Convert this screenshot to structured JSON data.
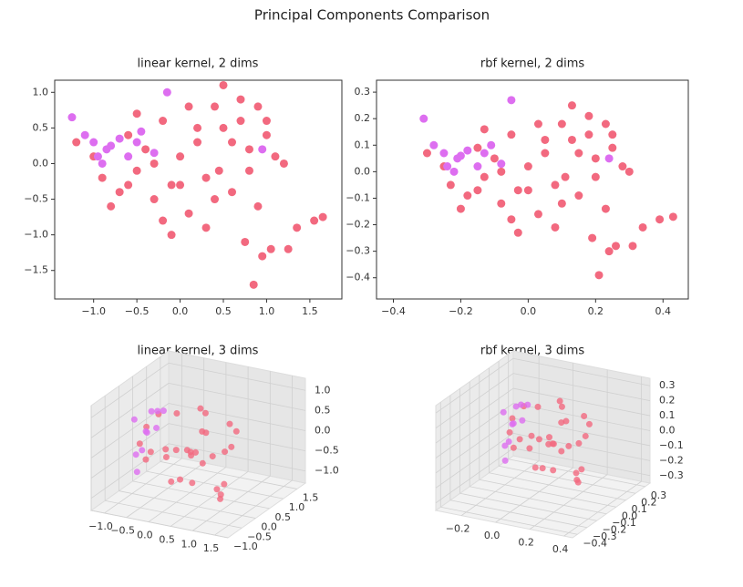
{
  "title": "Principal Components Comparison",
  "chart_data": [
    {
      "type": "scatter",
      "title": "linear kernel, 2 dims",
      "xlim": [
        -1.45,
        1.87
      ],
      "ylim": [
        -1.9,
        1.17
      ],
      "xticks": [
        {
          "value": -1,
          "label": "−1.0"
        },
        {
          "value": -0.5,
          "label": "−0.5"
        },
        {
          "value": 0,
          "label": "0.0"
        },
        0.5,
        {
          "value": 1,
          "label": "1.0"
        },
        1.5
      ],
      "yticks": [
        {
          "value": 1,
          "label": "1.0"
        },
        0.5,
        {
          "value": 0,
          "label": "0.0"
        },
        {
          "value": -0.5,
          "label": "−0.5"
        },
        {
          "value": -1,
          "label": "−1.0"
        },
        {
          "value": -1.5,
          "label": "−1.5"
        }
      ],
      "series": [
        {
          "color": "#f2697f",
          "x": [
            -1.2,
            -1.0,
            -0.9,
            -0.7,
            -0.6,
            -0.5,
            -0.4,
            -0.3,
            -0.2,
            -0.1,
            0.0,
            0.1,
            0.2,
            0.3,
            0.4,
            0.5,
            0.6,
            0.7,
            0.8,
            0.9,
            1.0,
            1.1,
            1.2,
            -0.8,
            -0.5,
            -0.2,
            0.1,
            0.4,
            0.7,
            1.0,
            0.3,
            0.0,
            -0.3,
            0.5,
            0.8,
            0.6,
            0.2,
            -0.6,
            0.9,
            0.75,
            0.95,
            1.05,
            1.25,
            1.35,
            1.55,
            1.65,
            0.85,
            -0.1,
            0.45
          ],
          "y": [
            0.3,
            0.1,
            -0.2,
            -0.4,
            0.4,
            -0.1,
            0.2,
            -0.5,
            0.6,
            -0.3,
            0.1,
            -0.7,
            0.3,
            -0.2,
            0.8,
            0.5,
            -0.4,
            0.9,
            0.2,
            -0.6,
            0.4,
            0.1,
            0.0,
            -0.6,
            0.7,
            -0.8,
            0.8,
            -0.5,
            0.6,
            0.6,
            -0.9,
            -0.3,
            0.0,
            1.1,
            -0.1,
            0.3,
            0.5,
            -0.3,
            0.8,
            -1.1,
            -1.3,
            -1.2,
            -1.2,
            -0.9,
            -0.8,
            -0.75,
            -1.7,
            -1.0,
            -0.1
          ]
        },
        {
          "color": "#dd6ef0",
          "x": [
            -1.25,
            -1.1,
            -1.0,
            -0.95,
            -0.85,
            -0.7,
            -0.6,
            -0.5,
            -0.45,
            -0.3,
            -0.15,
            0.95,
            -0.9,
            -0.8
          ],
          "y": [
            0.65,
            0.4,
            0.3,
            0.1,
            0.2,
            0.35,
            0.1,
            0.3,
            0.45,
            0.15,
            1.0,
            0.2,
            0.0,
            0.25
          ]
        }
      ]
    },
    {
      "type": "scatter",
      "title": "rbf kernel, 2 dims",
      "xlim": [
        -0.45,
        0.475
      ],
      "ylim": [
        -0.48,
        0.345
      ],
      "xticks": [
        {
          "value": -0.4,
          "label": "−0.4"
        },
        {
          "value": -0.2,
          "label": "−0.2"
        },
        {
          "value": 0,
          "label": "0.0"
        },
        0.2,
        0.4
      ],
      "yticks": [
        0.3,
        0.2,
        0.1,
        {
          "value": 0,
          "label": "0.0"
        },
        {
          "value": -0.1,
          "label": "−0.1"
        },
        {
          "value": -0.2,
          "label": "−0.2"
        },
        {
          "value": -0.3,
          "label": "−0.3"
        },
        {
          "value": -0.4,
          "label": "−0.4"
        }
      ],
      "series": [
        {
          "color": "#f2697f",
          "x": [
            -0.3,
            -0.25,
            -0.23,
            -0.18,
            -0.15,
            -0.13,
            -0.1,
            -0.08,
            -0.05,
            -0.03,
            0.0,
            0.03,
            0.05,
            0.08,
            0.1,
            0.13,
            0.15,
            0.18,
            0.2,
            0.23,
            0.25,
            0.28,
            0.3,
            -0.2,
            -0.13,
            -0.05,
            0.03,
            0.1,
            0.18,
            0.25,
            0.08,
            0.0,
            -0.08,
            0.13,
            0.2,
            0.15,
            0.05,
            -0.15,
            0.23,
            0.19,
            0.24,
            0.26,
            0.31,
            0.34,
            0.39,
            0.43,
            0.21,
            -0.03,
            0.11
          ],
          "y": [
            0.07,
            0.02,
            -0.05,
            -0.09,
            0.09,
            -0.02,
            0.05,
            -0.12,
            0.14,
            -0.07,
            0.02,
            -0.16,
            0.07,
            -0.05,
            0.18,
            0.12,
            -0.09,
            0.21,
            0.05,
            -0.14,
            0.09,
            0.02,
            0.0,
            -0.14,
            0.16,
            -0.18,
            0.18,
            -0.12,
            0.14,
            0.14,
            -0.21,
            -0.07,
            0.0,
            0.25,
            -0.02,
            0.07,
            0.12,
            -0.07,
            0.18,
            -0.25,
            -0.3,
            -0.28,
            -0.28,
            -0.21,
            -0.18,
            -0.17,
            -0.39,
            -0.23,
            -0.02
          ]
        },
        {
          "color": "#dd6ef0",
          "x": [
            -0.31,
            -0.28,
            -0.25,
            -0.24,
            -0.21,
            -0.18,
            -0.15,
            -0.13,
            -0.11,
            -0.08,
            -0.05,
            0.24,
            -0.22,
            -0.2
          ],
          "y": [
            0.2,
            0.1,
            0.07,
            0.02,
            0.05,
            0.08,
            0.02,
            0.07,
            0.1,
            0.03,
            0.27,
            0.05,
            0.0,
            0.06
          ]
        }
      ]
    },
    {
      "type": "scatter3d",
      "title": "linear kernel, 3 dims",
      "xlim": [
        -1.3,
        1.8
      ],
      "ylim": [
        -1.0,
        1.8
      ],
      "zlim": [
        -1.3,
        1.3
      ],
      "xticks": [
        {
          "value": -1,
          "label": "−1.0"
        },
        {
          "value": -0.5,
          "label": "−0.5"
        },
        {
          "value": 0,
          "label": "0.0"
        },
        0.5,
        {
          "value": 1,
          "label": "1.0"
        },
        1.5
      ],
      "yticks": [
        {
          "value": -1,
          "label": "−1.0"
        },
        {
          "value": -0.5,
          "label": "−0.5"
        },
        {
          "value": 0,
          "label": "0.0"
        },
        0.5,
        {
          "value": 1,
          "label": "1.0"
        },
        1.5
      ],
      "zticks": [
        {
          "value": -1,
          "label": "−1.0"
        },
        {
          "value": -0.5,
          "label": "−0.5"
        },
        {
          "value": 0,
          "label": "0.0"
        },
        0.5,
        {
          "value": 1,
          "label": "1.0"
        }
      ],
      "series": [
        {
          "color": "#f2697f",
          "x": [
            -0.8,
            -0.5,
            -0.3,
            0.0,
            0.2,
            0.4,
            0.6,
            0.8,
            1.0,
            -0.6,
            -0.2,
            0.1,
            0.3,
            0.5,
            0.7,
            -0.4,
            0.0,
            0.4,
            0.9,
            1.2,
            -0.7,
            -0.1,
            0.2,
            0.6,
            0.8,
            1.4,
            1.5,
            1.3,
            0.3,
            -0.3
          ],
          "y": [
            0.2,
            -0.3,
            0.5,
            0.0,
            -0.5,
            0.3,
            0.8,
            -0.2,
            0.4,
            0.6,
            -0.6,
            0.9,
            0.1,
            -0.4,
            0.2,
            0.0,
            0.7,
            -0.1,
            0.5,
            -0.3,
            -0.2,
            0.3,
            -0.7,
            0.0,
            0.9,
            -0.5,
            -0.8,
            -0.6,
            0.4,
            1.0
          ],
          "z": [
            0.3,
            -0.2,
            0.6,
            0.0,
            -0.5,
            0.4,
            -0.3,
            0.7,
            0.1,
            -0.6,
            0.2,
            0.5,
            -0.8,
            0.3,
            -0.1,
            0.8,
            -0.4,
            0.0,
            0.6,
            -0.7,
            0.1,
            -0.9,
            0.4,
            -0.2,
            0.2,
            -0.3,
            -0.5,
            -0.4,
            0.9,
            -0.6
          ]
        },
        {
          "color": "#dd6ef0",
          "x": [
            -1.2,
            -1.0,
            -0.9,
            -0.8,
            -1.1,
            -0.7,
            -0.95,
            -0.6,
            -0.85,
            -1.0
          ],
          "y": [
            0.4,
            0.5,
            0.2,
            0.6,
            0.3,
            0.4,
            0.1,
            0.5,
            0.3,
            0.7
          ],
          "z": [
            0.3,
            0.0,
            -0.3,
            0.5,
            -0.5,
            0.2,
            -0.8,
            0.6,
            0.1,
            0.4
          ]
        }
      ]
    },
    {
      "type": "scatter3d",
      "title": "rbf kernel, 3 dims",
      "xlim": [
        -0.35,
        0.45
      ],
      "ylim": [
        -0.45,
        0.35
      ],
      "zlim": [
        -0.35,
        0.35
      ],
      "xticks": [
        {
          "value": -0.2,
          "label": "−0.2"
        },
        {
          "value": 0,
          "label": "0.0"
        },
        0.2,
        0.4
      ],
      "yticks": [
        {
          "value": -0.4,
          "label": "−0.4"
        },
        {
          "value": -0.3,
          "label": "−0.3"
        },
        {
          "value": -0.2,
          "label": "−0.2"
        },
        {
          "value": -0.1,
          "label": "−0.1"
        },
        {
          "value": 0,
          "label": "0.0"
        },
        0.1,
        0.2,
        0.3
      ],
      "zticks": [
        {
          "value": -0.3,
          "label": "−0.3"
        },
        {
          "value": -0.2,
          "label": "−0.2"
        },
        {
          "value": -0.1,
          "label": "−0.1"
        },
        {
          "value": 0,
          "label": "0.0"
        },
        0.1,
        0.2,
        0.3
      ],
      "series": [
        {
          "color": "#f2697f",
          "x": [
            -0.18,
            -0.11,
            -0.07,
            0.0,
            0.04,
            0.09,
            0.13,
            0.18,
            0.22,
            -0.13,
            -0.04,
            0.02,
            0.07,
            0.11,
            0.15,
            -0.09,
            0.0,
            0.09,
            0.2,
            0.26,
            -0.15,
            -0.02,
            0.04,
            0.13,
            0.18,
            0.31,
            0.33,
            0.29,
            0.07,
            -0.07
          ],
          "y": [
            0.04,
            -0.07,
            0.11,
            0.0,
            -0.11,
            0.07,
            0.18,
            -0.04,
            0.09,
            0.13,
            -0.13,
            0.2,
            0.02,
            -0.09,
            0.04,
            0.0,
            0.15,
            -0.02,
            0.11,
            -0.07,
            -0.04,
            0.07,
            -0.15,
            0.0,
            0.2,
            -0.11,
            -0.18,
            -0.13,
            0.09,
            0.22
          ],
          "z": [
            0.08,
            -0.05,
            0.15,
            0.0,
            -0.13,
            0.1,
            -0.08,
            0.18,
            0.03,
            -0.15,
            0.05,
            0.13,
            -0.2,
            0.08,
            -0.03,
            0.2,
            -0.1,
            0.0,
            0.15,
            -0.18,
            0.03,
            -0.23,
            0.1,
            -0.05,
            0.05,
            -0.08,
            -0.13,
            -0.1,
            0.23,
            -0.15
          ]
        },
        {
          "color": "#dd6ef0",
          "x": [
            -0.26,
            -0.22,
            -0.2,
            -0.18,
            -0.24,
            -0.15,
            -0.21,
            -0.13,
            -0.19,
            -0.22
          ],
          "y": [
            0.09,
            0.11,
            0.04,
            0.13,
            0.07,
            0.09,
            0.02,
            0.11,
            0.07,
            0.15
          ],
          "z": [
            0.08,
            0.0,
            -0.08,
            0.13,
            -0.13,
            0.05,
            -0.2,
            0.15,
            0.03,
            0.1
          ]
        }
      ]
    }
  ]
}
